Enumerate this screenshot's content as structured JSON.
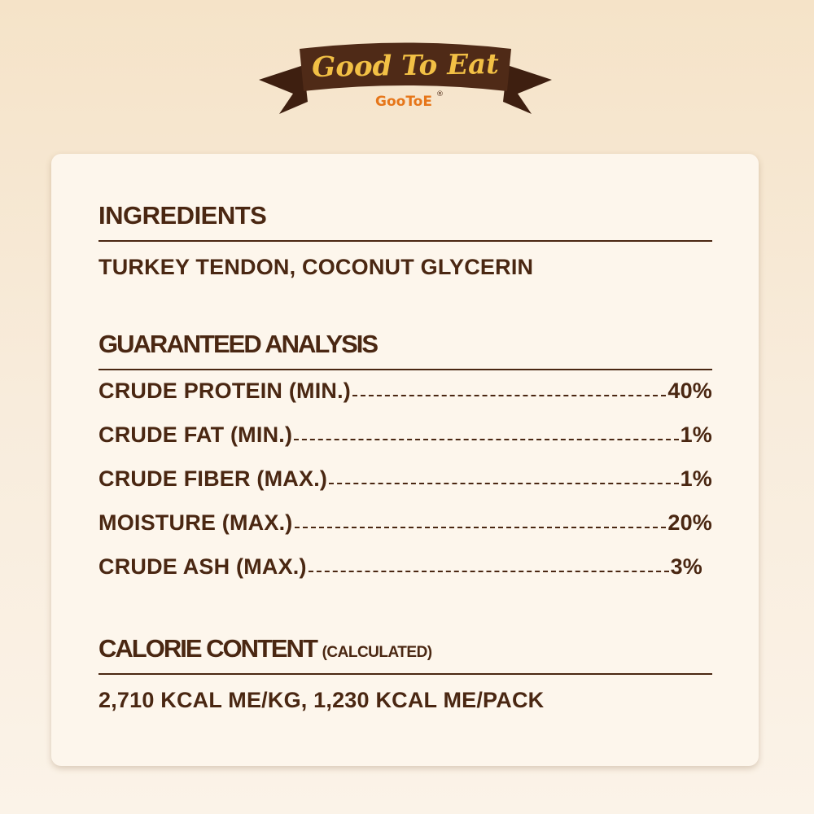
{
  "logo": {
    "tagline": "Good To Eat",
    "brand": "GooToE",
    "registered": "®"
  },
  "colors": {
    "text": "#4a2712",
    "ribbon": "#4f2a17",
    "tagline": "#f2c045",
    "brand": "#e6761a",
    "card": "#fdf6ec"
  },
  "ingredients": {
    "title": "INGREDIENTS",
    "text": "TURKEY TENDON, COCONUT GLYCERIN"
  },
  "analysis": {
    "title": "GUARANTEED ANALYSIS",
    "rows": [
      {
        "label": "CRUDE PROTEIN (MIN.)",
        "value": "40%"
      },
      {
        "label": "CRUDE FAT (MIN.)",
        "value": "1%"
      },
      {
        "label": "CRUDE FIBER (MAX.)",
        "value": "1%"
      },
      {
        "label": "MOISTURE (MAX.)",
        "value": "20%"
      },
      {
        "label": "CRUDE ASH (MAX.)",
        "value": "3%"
      }
    ]
  },
  "calorie": {
    "title": "CALORIE CONTENT",
    "subtitle": "(CALCULATED)",
    "text": "2,710 KCAL ME/KG, 1,230 KCAL ME/PACK"
  }
}
